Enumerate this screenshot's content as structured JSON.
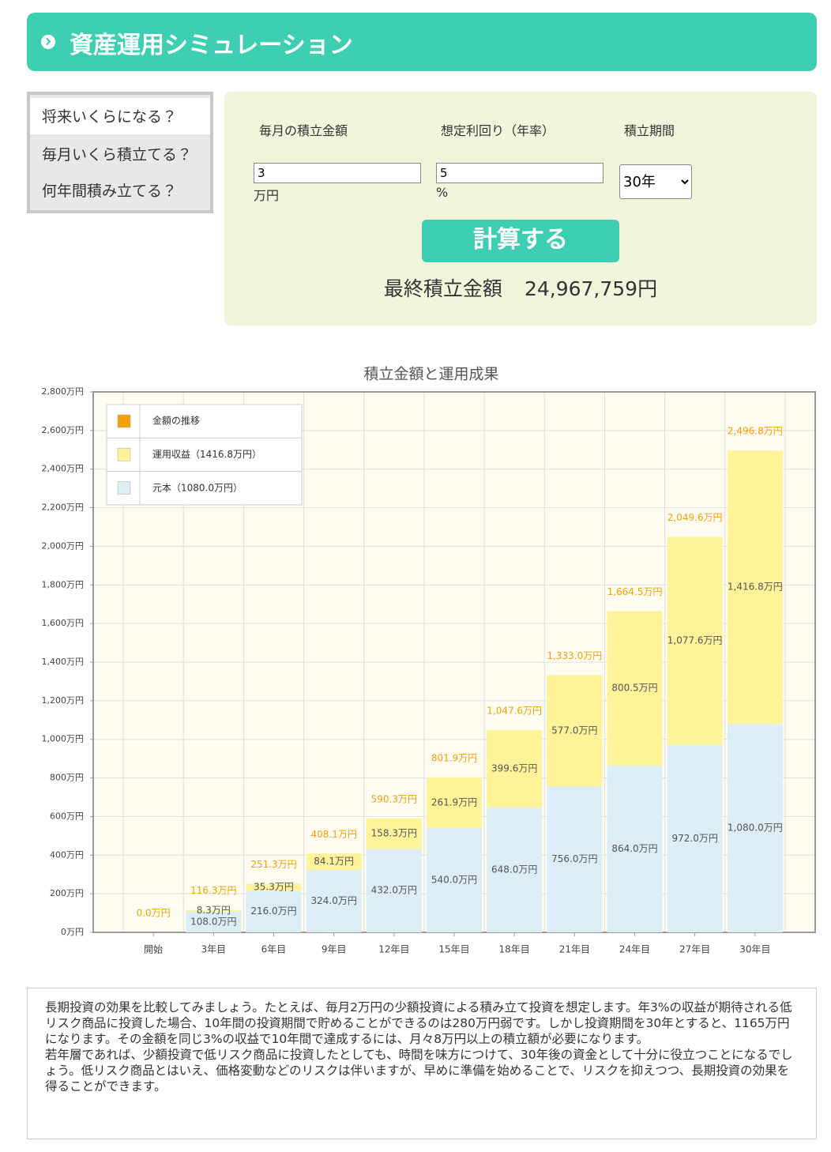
{
  "header": {
    "title": "資産運用シミュレーション"
  },
  "tabs": [
    "将来いくらになる？",
    "毎月いくら積立てる？",
    "何年間積み立てる？"
  ],
  "form": {
    "fields": [
      {
        "label": "毎月の積立金額",
        "value": "3",
        "unit": "万円"
      },
      {
        "label": "想定利回り（年率）",
        "value": "5",
        "unit": "%"
      },
      {
        "label": "積立期間",
        "value": "30年"
      }
    ],
    "button": "計算する",
    "result_label": "最終積立金額",
    "result_value": "24,967,759円"
  },
  "chart_data": {
    "type": "bar",
    "stacked": true,
    "title": "積立金額と運用成果",
    "categories": [
      "開始",
      "3年目",
      "6年目",
      "9年目",
      "12年目",
      "15年目",
      "18年目",
      "21年目",
      "24年目",
      "27年目",
      "30年目"
    ],
    "series": [
      {
        "name": "金額の推移",
        "type": "line",
        "color": "#f5a000",
        "values": [
          0,
          116.3,
          251.3,
          408.1,
          590.3,
          801.9,
          1047.6,
          1333.0,
          1664.5,
          2049.6,
          2496.8
        ],
        "value_labels": [
          "0.0万円",
          "116.3万円",
          "251.3万円",
          "408.1万円",
          "590.3万円",
          "801.9万円",
          "1,047.6万円",
          "1,333.0万円",
          "1,664.5万円",
          "2,049.6万円",
          "2,496.8万円"
        ]
      },
      {
        "name": "運用収益（1416.8万円）",
        "color": "#fff39a",
        "values": [
          0,
          8.3,
          35.3,
          84.1,
          158.3,
          261.9,
          399.6,
          577.0,
          800.5,
          1077.6,
          1416.8
        ],
        "value_labels": [
          null,
          "8.3万円",
          "35.3万円",
          "84.1万円",
          "158.3万円",
          "261.9万円",
          "399.6万円",
          "577.0万円",
          "800.5万円",
          "1,077.6万円",
          "1,416.8万円"
        ]
      },
      {
        "name": "元本（1080.0万円）",
        "color": "#dcedf5",
        "values": [
          0,
          108,
          216,
          324,
          432,
          540,
          648,
          756,
          864,
          972,
          1080
        ],
        "value_labels": [
          null,
          "108.0万円",
          "216.0万円",
          "324.0万円",
          "432.0万円",
          "540.0万円",
          "648.0万円",
          "756.0万円",
          "864.0万円",
          "972.0万円",
          "1,080.0万円"
        ]
      }
    ],
    "ylim": [
      0,
      2800
    ],
    "yticks": [
      {
        "value": 0,
        "label": "0万円"
      },
      {
        "value": 200,
        "label": "200万円"
      },
      {
        "value": 400,
        "label": "400万円"
      },
      {
        "value": 600,
        "label": "600万円"
      },
      {
        "value": 800,
        "label": "800万円"
      },
      {
        "value": 1000,
        "label": "1,000万円"
      },
      {
        "value": 1200,
        "label": "1,200万円"
      },
      {
        "value": 1400,
        "label": "1,400万円"
      },
      {
        "value": 1600,
        "label": "1,600万円"
      },
      {
        "value": 1800,
        "label": "1,800万円"
      },
      {
        "value": 2000,
        "label": "2,000万円"
      },
      {
        "value": 2200,
        "label": "2,200万円"
      },
      {
        "value": 2400,
        "label": "2,400万円"
      },
      {
        "value": 2600,
        "label": "2,600万円"
      },
      {
        "value": 2800,
        "label": "2,800万円"
      }
    ],
    "grid": true,
    "legend": "upper-left"
  },
  "description": [
    "長期投資の効果を比較してみましょう。たとえば、毎月2万円の少額投資による積み立て投資を想定します。年3%の収益が期待される低リスク商品に投資した場合、10年間の投資期間で貯めることができるのは280万円弱です。しかし投資期間を30年とすると、1165万円になります。その金額を同じ3%の収益で10年間で達成するには、月々8万円以上の積立額が必要になります。",
    "若年層であれば、少額投資で低リスク商品に投資したとしても、時間を味方につけて、30年後の資金として十分に役立つことになるでしょう。低リスク商品とはいえ、価格変動などのリスクは伴いますが、早めに準備を始めることで、リスクを抑えつつ、長期投資の効果を得ることができます。"
  ]
}
